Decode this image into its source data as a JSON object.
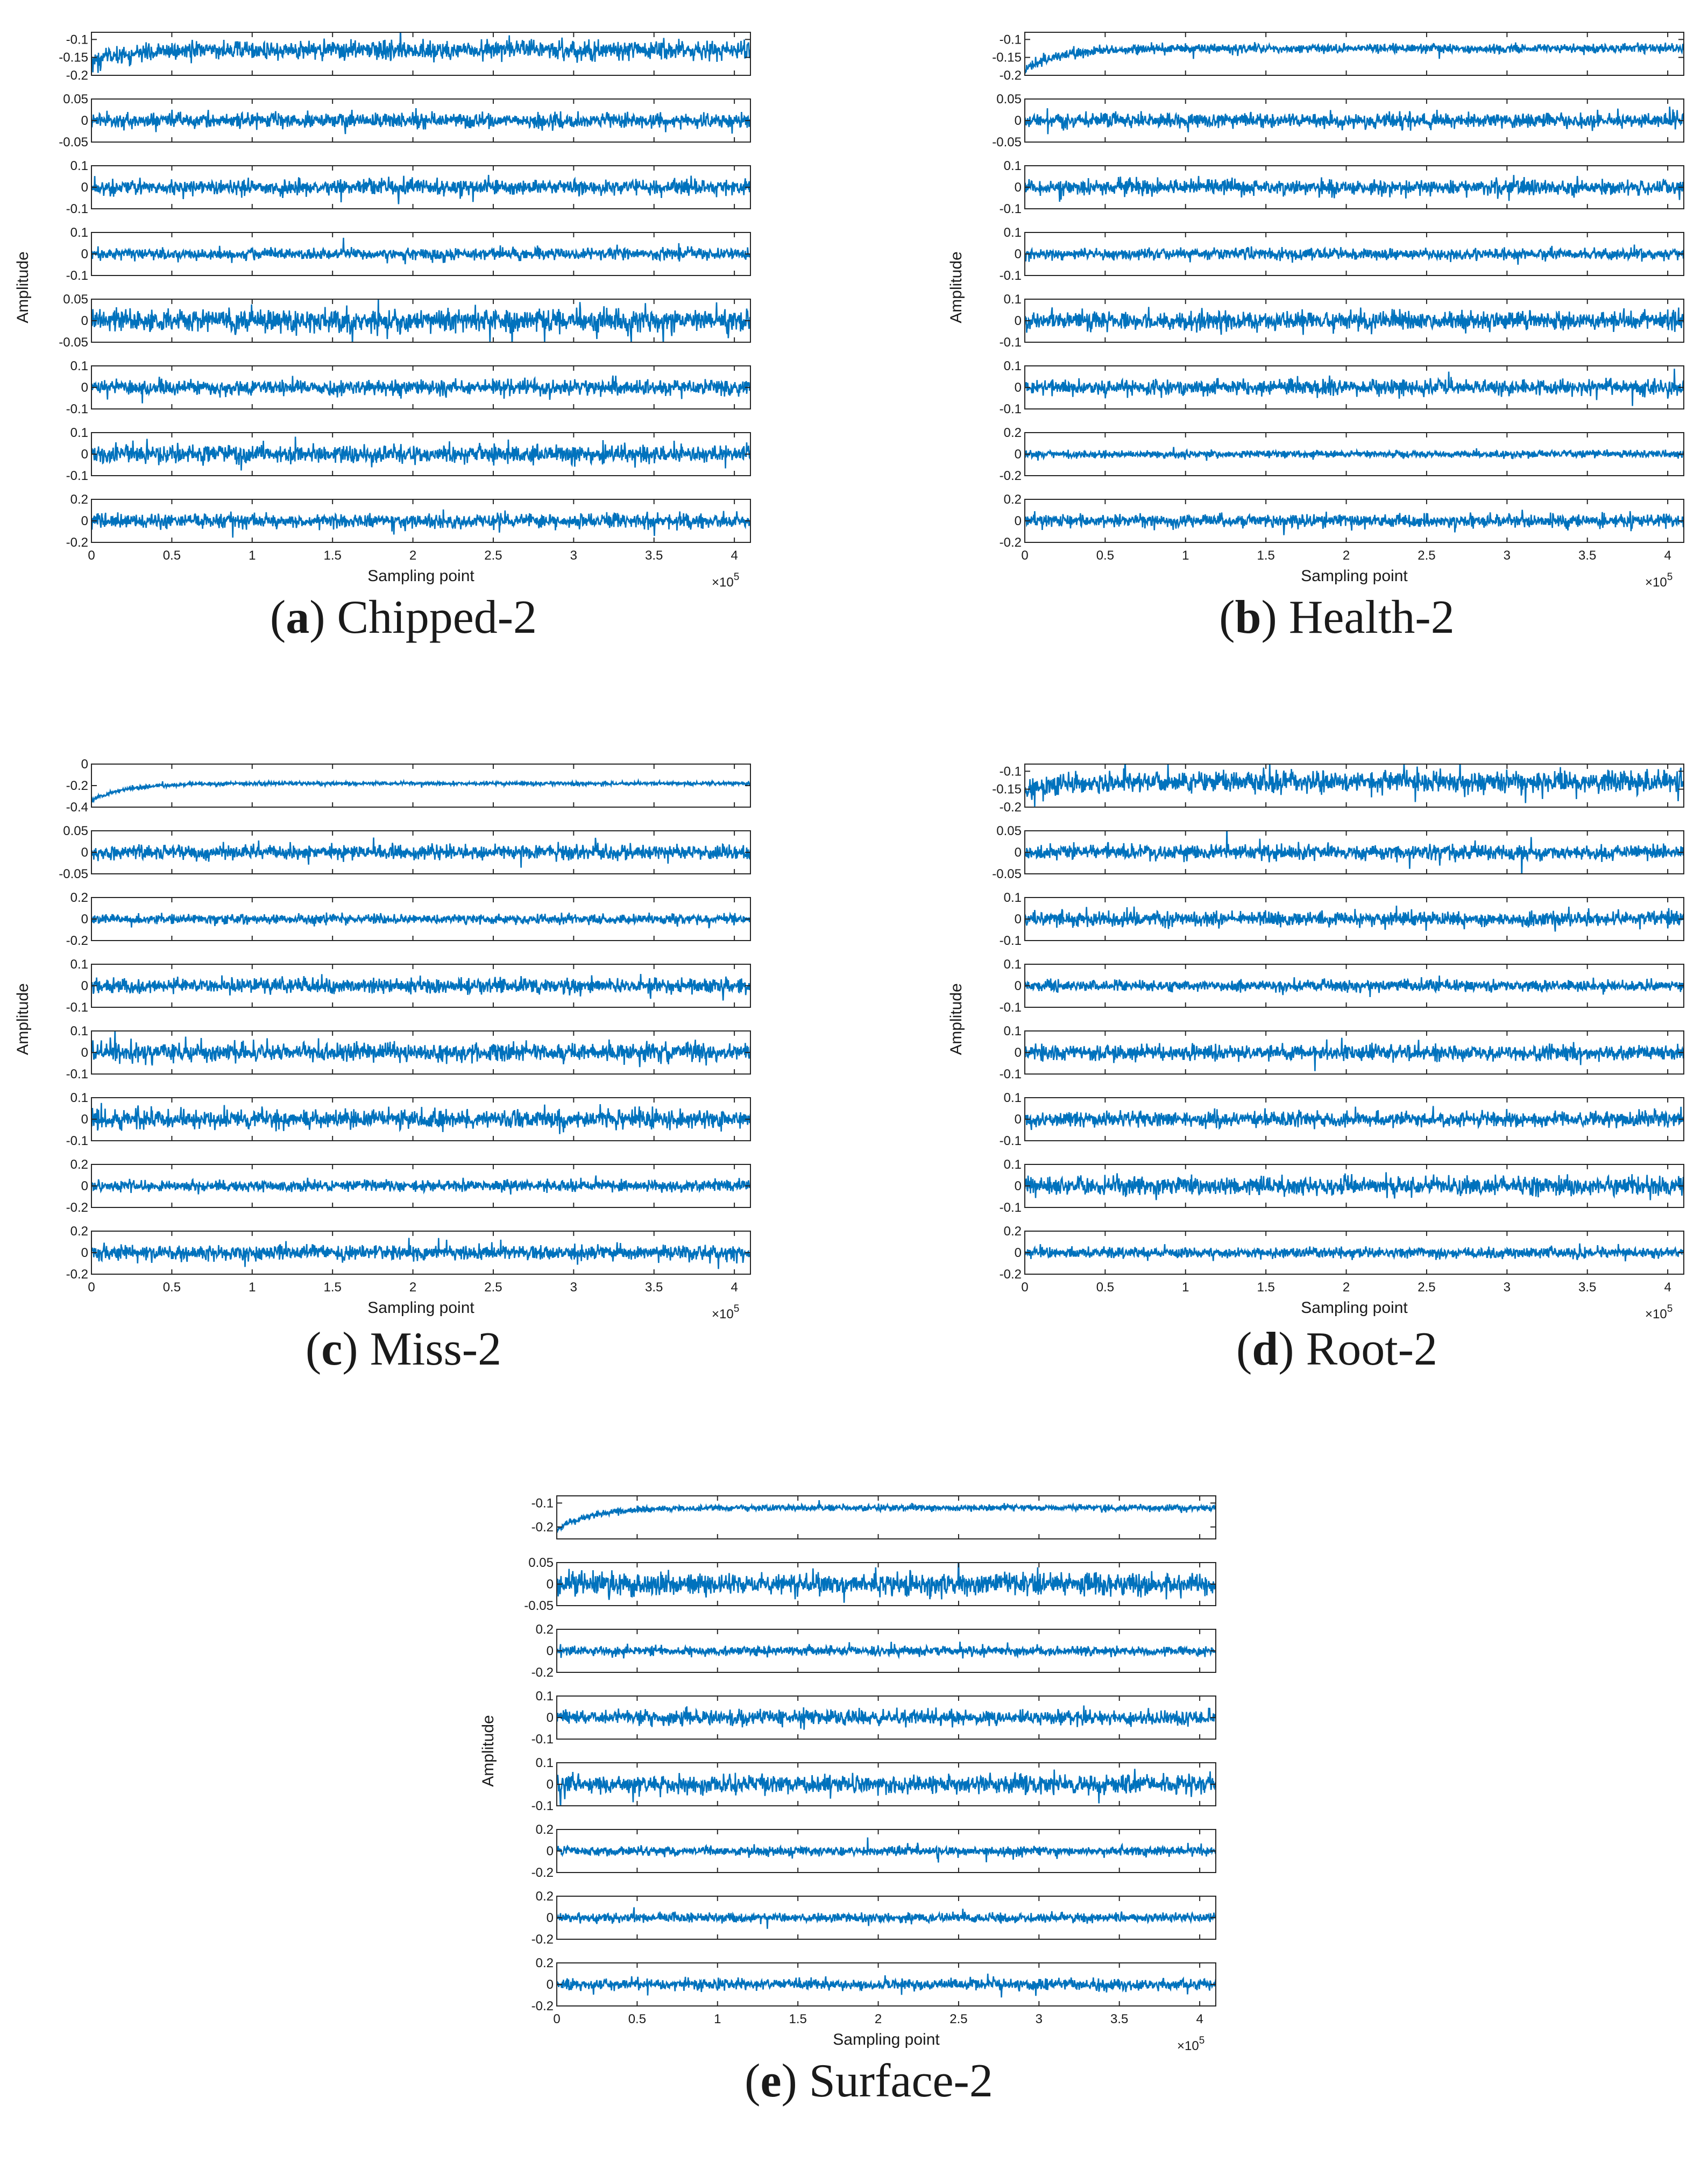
{
  "chart_data": [
    {
      "type": "line",
      "caption_letter": "a",
      "caption_text": "Chipped-2",
      "xlabel": "Sampling point",
      "ylabel": "Amplitude",
      "x_multiplier": "×10",
      "x_exponent": "5",
      "xlim": [
        0,
        4.1
      ],
      "xticks": [
        "0",
        "0.5",
        "1",
        "1.5",
        "2",
        "2.5",
        "3",
        "3.5",
        "4"
      ],
      "series_color": "#0072BD",
      "channels": [
        {
          "ylim": [
            -0.2,
            -0.08
          ],
          "ticks": [
            "-0.1",
            "-0.15",
            "-0.2"
          ],
          "mean": -0.13,
          "amplitude": 0.03,
          "initial_offset": -0.03
        },
        {
          "ylim": [
            -0.05,
            0.05
          ],
          "ticks": [
            "0.05",
            "0",
            "-0.05"
          ],
          "mean": 0,
          "amplitude": 0.02
        },
        {
          "ylim": [
            -0.1,
            0.1
          ],
          "ticks": [
            "0.1",
            "0",
            "-0.1"
          ],
          "mean": 0,
          "amplitude": 0.04
        },
        {
          "ylim": [
            -0.1,
            0.1
          ],
          "ticks": [
            "0.1",
            "0",
            "-0.1"
          ],
          "mean": 0,
          "amplitude": 0.03
        },
        {
          "ylim": [
            -0.05,
            0.05
          ],
          "ticks": [
            "0.05",
            "0",
            "-0.05"
          ],
          "mean": 0,
          "amplitude": 0.03
        },
        {
          "ylim": [
            -0.1,
            0.1
          ],
          "ticks": [
            "0.1",
            "0",
            "-0.1"
          ],
          "mean": 0,
          "amplitude": 0.04
        },
        {
          "ylim": [
            -0.1,
            0.1
          ],
          "ticks": [
            "0.1",
            "0",
            "-0.1"
          ],
          "mean": 0,
          "amplitude": 0.05
        },
        {
          "ylim": [
            -0.2,
            0.2
          ],
          "ticks": [
            "0.2",
            "0",
            "-0.2"
          ],
          "mean": 0,
          "amplitude": 0.08
        }
      ]
    },
    {
      "type": "line",
      "caption_letter": "b",
      "caption_text": "Health-2",
      "xlabel": "Sampling point",
      "ylabel": "Amplitude",
      "x_multiplier": "×10",
      "x_exponent": "5",
      "xlim": [
        0,
        4.1
      ],
      "xticks": [
        "0",
        "0.5",
        "1",
        "1.5",
        "2",
        "2.5",
        "3",
        "3.5",
        "4"
      ],
      "series_color": "#0072BD",
      "channels": [
        {
          "ylim": [
            -0.2,
            -0.08
          ],
          "ticks": [
            "-0.1",
            "-0.15",
            "-0.2"
          ],
          "mean": -0.125,
          "amplitude": 0.015,
          "initial_offset": -0.06
        },
        {
          "ylim": [
            -0.05,
            0.05
          ],
          "ticks": [
            "0.05",
            "0",
            "-0.05"
          ],
          "mean": 0,
          "amplitude": 0.02
        },
        {
          "ylim": [
            -0.1,
            0.1
          ],
          "ticks": [
            "0.1",
            "0",
            "-0.1"
          ],
          "mean": 0,
          "amplitude": 0.04
        },
        {
          "ylim": [
            -0.1,
            0.1
          ],
          "ticks": [
            "0.1",
            "0",
            "-0.1"
          ],
          "mean": 0,
          "amplitude": 0.03
        },
        {
          "ylim": [
            -0.1,
            0.1
          ],
          "ticks": [
            "0.1",
            "0",
            "-0.1"
          ],
          "mean": 0,
          "amplitude": 0.05
        },
        {
          "ylim": [
            -0.1,
            0.1
          ],
          "ticks": [
            "0.1",
            "0",
            "-0.1"
          ],
          "mean": 0,
          "amplitude": 0.04
        },
        {
          "ylim": [
            -0.2,
            0.2
          ],
          "ticks": [
            "0.2",
            "0",
            "-0.2"
          ],
          "mean": 0,
          "amplitude": 0.04
        },
        {
          "ylim": [
            -0.2,
            0.2
          ],
          "ticks": [
            "0.2",
            "0",
            "-0.2"
          ],
          "mean": 0,
          "amplitude": 0.07
        }
      ]
    },
    {
      "type": "line",
      "caption_letter": "c",
      "caption_text": "Miss-2",
      "xlabel": "Sampling point",
      "ylabel": "Amplitude",
      "x_multiplier": "×10",
      "x_exponent": "5",
      "xlim": [
        0,
        4.1
      ],
      "xticks": [
        "0",
        "0.5",
        "1",
        "1.5",
        "2",
        "2.5",
        "3",
        "3.5",
        "4"
      ],
      "series_color": "#0072BD",
      "channels": [
        {
          "ylim": [
            -0.4,
            0
          ],
          "ticks": [
            "0",
            "-0.2",
            "-0.4"
          ],
          "mean": -0.18,
          "amplitude": 0.02,
          "initial_offset": -0.15
        },
        {
          "ylim": [
            -0.05,
            0.05
          ],
          "ticks": [
            "0.05",
            "0",
            "-0.05"
          ],
          "mean": 0,
          "amplitude": 0.02
        },
        {
          "ylim": [
            -0.2,
            0.2
          ],
          "ticks": [
            "0.2",
            "0",
            "-0.2"
          ],
          "mean": 0,
          "amplitude": 0.05
        },
        {
          "ylim": [
            -0.1,
            0.1
          ],
          "ticks": [
            "0.1",
            "0",
            "-0.1"
          ],
          "mean": 0,
          "amplitude": 0.04
        },
        {
          "ylim": [
            -0.1,
            0.1
          ],
          "ticks": [
            "0.1",
            "0",
            "-0.1"
          ],
          "mean": 0,
          "amplitude": 0.05
        },
        {
          "ylim": [
            -0.1,
            0.1
          ],
          "ticks": [
            "0.1",
            "0",
            "-0.1"
          ],
          "mean": 0,
          "amplitude": 0.05
        },
        {
          "ylim": [
            -0.2,
            0.2
          ],
          "ticks": [
            "0.2",
            "0",
            "-0.2"
          ],
          "mean": 0,
          "amplitude": 0.06
        },
        {
          "ylim": [
            -0.2,
            0.2
          ],
          "ticks": [
            "0.2",
            "0",
            "-0.2"
          ],
          "mean": 0,
          "amplitude": 0.08
        }
      ]
    },
    {
      "type": "line",
      "caption_letter": "d",
      "caption_text": "Root-2",
      "xlabel": "Sampling point",
      "ylabel": "Amplitude",
      "x_multiplier": "×10",
      "x_exponent": "5",
      "xlim": [
        0,
        4.1
      ],
      "xticks": [
        "0",
        "0.5",
        "1",
        "1.5",
        "2",
        "2.5",
        "3",
        "3.5",
        "4"
      ],
      "series_color": "#0072BD",
      "channels": [
        {
          "ylim": [
            -0.2,
            -0.08
          ],
          "ticks": [
            "-0.1",
            "-0.15",
            "-0.2"
          ],
          "mean": -0.13,
          "amplitude": 0.035,
          "initial_offset": -0.02
        },
        {
          "ylim": [
            -0.05,
            0.05
          ],
          "ticks": [
            "0.05",
            "0",
            "-0.05"
          ],
          "mean": 0,
          "amplitude": 0.02
        },
        {
          "ylim": [
            -0.1,
            0.1
          ],
          "ticks": [
            "0.1",
            "0",
            "-0.1"
          ],
          "mean": 0,
          "amplitude": 0.04
        },
        {
          "ylim": [
            -0.1,
            0.1
          ],
          "ticks": [
            "0.1",
            "0",
            "-0.1"
          ],
          "mean": 0,
          "amplitude": 0.03
        },
        {
          "ylim": [
            -0.1,
            0.1
          ],
          "ticks": [
            "0.1",
            "0",
            "-0.1"
          ],
          "mean": 0,
          "amplitude": 0.04
        },
        {
          "ylim": [
            -0.1,
            0.1
          ],
          "ticks": [
            "0.1",
            "0",
            "-0.1"
          ],
          "mean": 0,
          "amplitude": 0.04
        },
        {
          "ylim": [
            -0.1,
            0.1
          ],
          "ticks": [
            "0.1",
            "0",
            "-0.1"
          ],
          "mean": 0,
          "amplitude": 0.05
        },
        {
          "ylim": [
            -0.2,
            0.2
          ],
          "ticks": [
            "0.2",
            "0",
            "-0.2"
          ],
          "mean": 0,
          "amplitude": 0.06
        }
      ]
    },
    {
      "type": "line",
      "caption_letter": "e",
      "caption_text": "Surface-2",
      "xlabel": "Sampling point",
      "ylabel": "Amplitude",
      "x_multiplier": "×10",
      "x_exponent": "5",
      "xlim": [
        0,
        4.1
      ],
      "xticks": [
        "0",
        "0.5",
        "1",
        "1.5",
        "2",
        "2.5",
        "3",
        "3.5",
        "4"
      ],
      "series_color": "#0072BD",
      "channels": [
        {
          "ylim": [
            -0.25,
            -0.07
          ],
          "ticks": [
            "-0.1",
            "-0.2"
          ],
          "mean": -0.12,
          "amplitude": 0.015,
          "initial_offset": -0.09
        },
        {
          "ylim": [
            -0.05,
            0.05
          ],
          "ticks": [
            "0.05",
            "0",
            "-0.05"
          ],
          "mean": 0,
          "amplitude": 0.03
        },
        {
          "ylim": [
            -0.2,
            0.2
          ],
          "ticks": [
            "0.2",
            "0",
            "-0.2"
          ],
          "mean": 0,
          "amplitude": 0.05
        },
        {
          "ylim": [
            -0.1,
            0.1
          ],
          "ticks": [
            "0.1",
            "0",
            "-0.1"
          ],
          "mean": 0,
          "amplitude": 0.04
        },
        {
          "ylim": [
            -0.1,
            0.1
          ],
          "ticks": [
            "0.1",
            "0",
            "-0.1"
          ],
          "mean": 0,
          "amplitude": 0.05
        },
        {
          "ylim": [
            -0.2,
            0.2
          ],
          "ticks": [
            "0.2",
            "0",
            "-0.2"
          ],
          "mean": 0,
          "amplitude": 0.05
        },
        {
          "ylim": [
            -0.2,
            0.2
          ],
          "ticks": [
            "0.2",
            "0",
            "-0.2"
          ],
          "mean": 0,
          "amplitude": 0.05
        },
        {
          "ylim": [
            -0.2,
            0.2
          ],
          "ticks": [
            "0.2",
            "0",
            "-0.2"
          ],
          "mean": 0,
          "amplitude": 0.06
        }
      ]
    }
  ]
}
